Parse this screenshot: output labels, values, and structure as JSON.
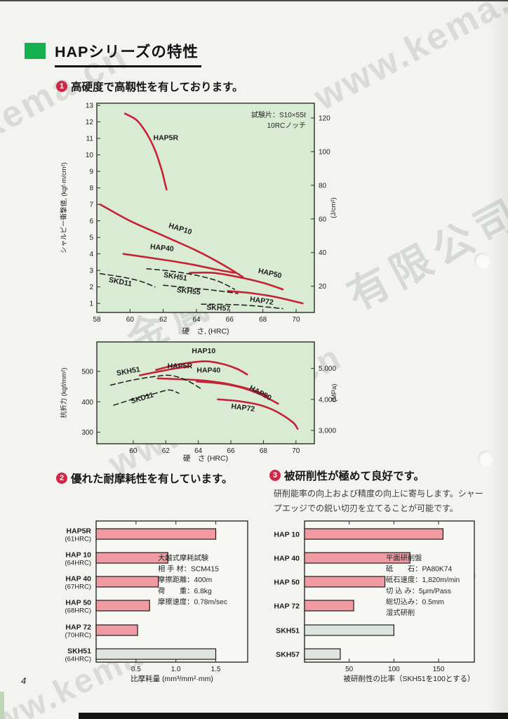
{
  "header": {
    "title": "HAPシリーズの特性"
  },
  "sections": {
    "s1": {
      "num": "1",
      "heading": "高硬度で高靱性を有しております。"
    },
    "s2": {
      "num": "2",
      "heading": "優れた耐摩耗性を有しています。"
    },
    "s3": {
      "num": "3",
      "heading": "被研削性が極めて良好です。",
      "body1": "研削能率の向上および精度の向上に寄与します。シャー",
      "body2": "プエッジでの鋭い切刃を立てることが可能です。"
    }
  },
  "footer": {
    "page_number": "4"
  },
  "watermarks": [
    "www.kema.cn",
    "有限公司",
    "金属材料"
  ],
  "colors": {
    "accent_red": "#cd2848",
    "curve_red": "#c42237",
    "bar_pink": "#f09aa3",
    "bar_gray": "#dde5e0",
    "panel_green": "#d9ebd3",
    "panel_white": "#f7f7f3",
    "green_square": "#15b14e"
  },
  "chart_data": [
    {
      "id": "impact",
      "type": "line",
      "annotation": [
        "試験片：S10×55ℓ",
        "10RCノッチ"
      ],
      "xlabel": "硬　さ, (HRC)",
      "ylabel_left": "シャルピー衝撃値, (kgf·m/cm²)",
      "ylabel_right": "(J/cm²)",
      "xlim": [
        58,
        71.1
      ],
      "ylim": [
        0.45,
        13.13
      ],
      "xticks": [
        58,
        60,
        62,
        64,
        66,
        68,
        70
      ],
      "yticks_left": [
        1,
        2,
        3,
        4,
        5,
        6,
        7,
        8,
        9,
        10,
        11,
        12,
        13
      ],
      "yticks_right": [
        20,
        40,
        60,
        80,
        100,
        120
      ],
      "right_scale": 9.807,
      "series": [
        {
          "name": "HAP5R",
          "style": "solid",
          "points": [
            [
              59.7,
              12.5
            ],
            [
              60.4,
              12.1
            ],
            [
              61.0,
              11.3
            ],
            [
              61.5,
              10.3
            ],
            [
              61.9,
              9.1
            ],
            [
              62.1,
              8.3
            ],
            [
              62.2,
              7.9
            ]
          ],
          "label_xy": [
            61.4,
            10.9
          ],
          "label_rot": 0
        },
        {
          "name": "HAP10",
          "style": "solid",
          "points": [
            [
              58.2,
              7.0
            ],
            [
              60.0,
              6.0
            ],
            [
              62.0,
              5.1
            ],
            [
              64.0,
              4.2
            ],
            [
              65.5,
              3.4
            ],
            [
              66.8,
              2.6
            ]
          ],
          "label_xy": [
            62.3,
            5.6
          ],
          "label_rot": 17
        },
        {
          "name": "HAP40",
          "style": "solid",
          "points": [
            [
              59.6,
              4.0
            ],
            [
              61.5,
              3.72
            ],
            [
              63.5,
              3.4
            ],
            [
              65.2,
              3.05
            ],
            [
              66.3,
              2.85
            ]
          ],
          "label_xy": [
            61.2,
            4.3
          ],
          "label_rot": 6
        },
        {
          "name": "HAP50",
          "style": "solid",
          "points": [
            [
              63.6,
              2.85
            ],
            [
              65.0,
              2.85
            ],
            [
              66.5,
              2.6
            ],
            [
              68.0,
              2.25
            ],
            [
              69.2,
              1.85
            ]
          ],
          "label_xy": [
            67.7,
            2.85
          ],
          "label_rot": 13
        },
        {
          "name": "HAP72",
          "style": "solid",
          "points": [
            [
              65.9,
              1.75
            ],
            [
              67.3,
              1.62
            ],
            [
              68.8,
              1.38
            ],
            [
              70.4,
              1.0
            ]
          ],
          "label_xy": [
            67.2,
            1.12
          ],
          "label_rot": 8
        },
        {
          "name": "SKD11",
          "style": "dashed",
          "points": [
            [
              58.2,
              2.8
            ],
            [
              59.5,
              2.6
            ],
            [
              60.6,
              2.35
            ],
            [
              61.5,
              2.0
            ]
          ],
          "label_xy": [
            58.7,
            2.3
          ],
          "label_rot": 11
        },
        {
          "name": "SKH51",
          "style": "dashed",
          "points": [
            [
              61.0,
              3.1
            ],
            [
              62.5,
              2.95
            ],
            [
              64.0,
              2.7
            ],
            [
              65.3,
              2.35
            ],
            [
              66.3,
              1.85
            ]
          ],
          "label_xy": [
            62.0,
            2.6
          ],
          "label_rot": 9
        },
        {
          "name": "SKH55",
          "style": "dashed",
          "points": [
            [
              62.0,
              2.1
            ],
            [
              63.5,
              1.95
            ],
            [
              65.0,
              1.8
            ],
            [
              66.5,
              1.6
            ]
          ],
          "label_xy": [
            62.8,
            1.68
          ],
          "label_rot": 6
        },
        {
          "name": "SKH57",
          "style": "dashed",
          "points": [
            [
              64.3,
              0.95
            ],
            [
              66.0,
              0.93
            ],
            [
              67.5,
              0.85
            ],
            [
              69.2,
              0.68
            ]
          ],
          "label_xy": [
            64.6,
            0.62
          ],
          "label_rot": 3
        }
      ]
    },
    {
      "id": "bend",
      "type": "line",
      "annotation": [],
      "xlabel": "硬　さ (HRC)",
      "ylabel_left": "抗折力 (kgf/mm²)",
      "ylabel_right": "(MPa)",
      "xlim": [
        57.76,
        71.13
      ],
      "ylim": [
        262,
        597
      ],
      "xticks": [
        60,
        62,
        64,
        66,
        68,
        70
      ],
      "yticks_left": [
        300,
        400,
        500
      ],
      "yticks_right": [
        3000,
        4000,
        5000
      ],
      "yticks_right_labels": [
        "3,000",
        "4,000",
        "5,000"
      ],
      "right_scale": 9.807,
      "series": [
        {
          "name": "HAP10",
          "style": "solid",
          "points": [
            [
              61.4,
              505
            ],
            [
              62.6,
              521
            ],
            [
              63.8,
              531
            ],
            [
              64.6,
              533
            ],
            [
              65.6,
              523
            ],
            [
              66.4,
              508
            ],
            [
              67.0,
              490
            ]
          ],
          "label_xy": [
            63.6,
            560
          ],
          "label_rot": 0
        },
        {
          "name": "HAP5R",
          "style": "solid",
          "points": [
            [
              60.4,
              487
            ],
            [
              61.4,
              498
            ],
            [
              62.5,
              509
            ],
            [
              63.5,
              517
            ]
          ],
          "label_xy": [
            62.1,
            510
          ],
          "label_rot": 0
        },
        {
          "name": "HAP40",
          "style": "solid",
          "points": [
            [
              61.5,
              477
            ],
            [
              63.0,
              474
            ],
            [
              64.5,
              469
            ],
            [
              66.0,
              457
            ],
            [
              67.3,
              439
            ],
            [
              68.3,
              419
            ]
          ],
          "label_xy": [
            63.9,
            497
          ],
          "label_rot": 0
        },
        {
          "name": "HAP50",
          "style": "solid",
          "points": [
            [
              63.9,
              467
            ],
            [
              65.3,
              461
            ],
            [
              66.5,
              449
            ],
            [
              67.7,
              427
            ],
            [
              68.9,
              394
            ]
          ],
          "label_xy": [
            67.1,
            441
          ],
          "label_rot": 28
        },
        {
          "name": "HAP72",
          "style": "solid",
          "points": [
            [
              65.2,
              408
            ],
            [
              66.5,
              402
            ],
            [
              67.8,
              389
            ],
            [
              68.8,
              368
            ],
            [
              69.8,
              333
            ],
            [
              70.1,
              311
            ]
          ],
          "label_xy": [
            66.0,
            378
          ],
          "label_rot": 7
        },
        {
          "name": "SKH51",
          "style": "dashed",
          "points": [
            [
              58.6,
              455
            ],
            [
              60.0,
              472
            ],
            [
              61.3,
              483
            ],
            [
              62.3,
              487
            ],
            [
              63.3,
              470
            ],
            [
              64.2,
              442
            ]
          ],
          "label_xy": [
            59.0,
            486
          ],
          "label_rot": -10
        },
        {
          "name": "SKD11",
          "style": "dashed",
          "points": [
            [
              58.8,
              389
            ],
            [
              60.0,
              409
            ],
            [
              61.3,
              427
            ],
            [
              62.2,
              439
            ],
            [
              62.8,
              428
            ]
          ],
          "label_xy": [
            59.9,
            394
          ],
          "label_rot": -17
        }
      ]
    },
    {
      "id": "wear",
      "type": "bar",
      "categories": [
        [
          "HAP5R",
          "(61HRC)"
        ],
        [
          "HAP 10",
          "(64HRC)"
        ],
        [
          "HAP 40",
          "(67HRC)"
        ],
        [
          "HAP 50",
          "(68HRC)"
        ],
        [
          "HAP 72",
          "(70HRC)"
        ],
        [
          "SKH51",
          "(64HRC)"
        ]
      ],
      "values": [
        1.5,
        0.9,
        0.78,
        0.67,
        0.52,
        1.5
      ],
      "bar_colors": [
        "pink",
        "pink",
        "pink",
        "pink",
        "pink",
        "gray"
      ],
      "xlim": [
        0,
        1.9
      ],
      "xticks": [
        0.5,
        1.0,
        1.5
      ],
      "xtick_labels": [
        "0.5",
        "1.0",
        "1.5"
      ],
      "xlabel": "比摩耗量 (mm³/mm²·mm)",
      "note": [
        "大越式摩耗試験",
        "相 手 材：SCM415",
        "摩擦距離：400m",
        "荷　　重：6.8kg",
        "摩擦速度：0.78m/sec"
      ]
    },
    {
      "id": "grind",
      "type": "bar",
      "categories": [
        [
          "HAP 10"
        ],
        [
          "HAP 40"
        ],
        [
          "HAP 50"
        ],
        [
          "HAP 72"
        ],
        [
          "SKH51"
        ],
        [
          "SKH57"
        ]
      ],
      "values": [
        155,
        118,
        90,
        55,
        100,
        40
      ],
      "bar_colors": [
        "pink",
        "pink",
        "pink",
        "pink",
        "gray",
        "gray"
      ],
      "xlim": [
        0,
        190
      ],
      "xticks": [
        50,
        100,
        150
      ],
      "xtick_labels": [
        "50",
        "100",
        "150"
      ],
      "xlabel": "被研削性の比率（SKH51を100とする）",
      "note": [
        "平面研削盤",
        "砥　　石：PA80K74",
        "砥石速度：1,820m/min",
        "切 込 み：5μm/Pass",
        "総切込み：0.5mm",
        "湿式研削"
      ]
    }
  ]
}
